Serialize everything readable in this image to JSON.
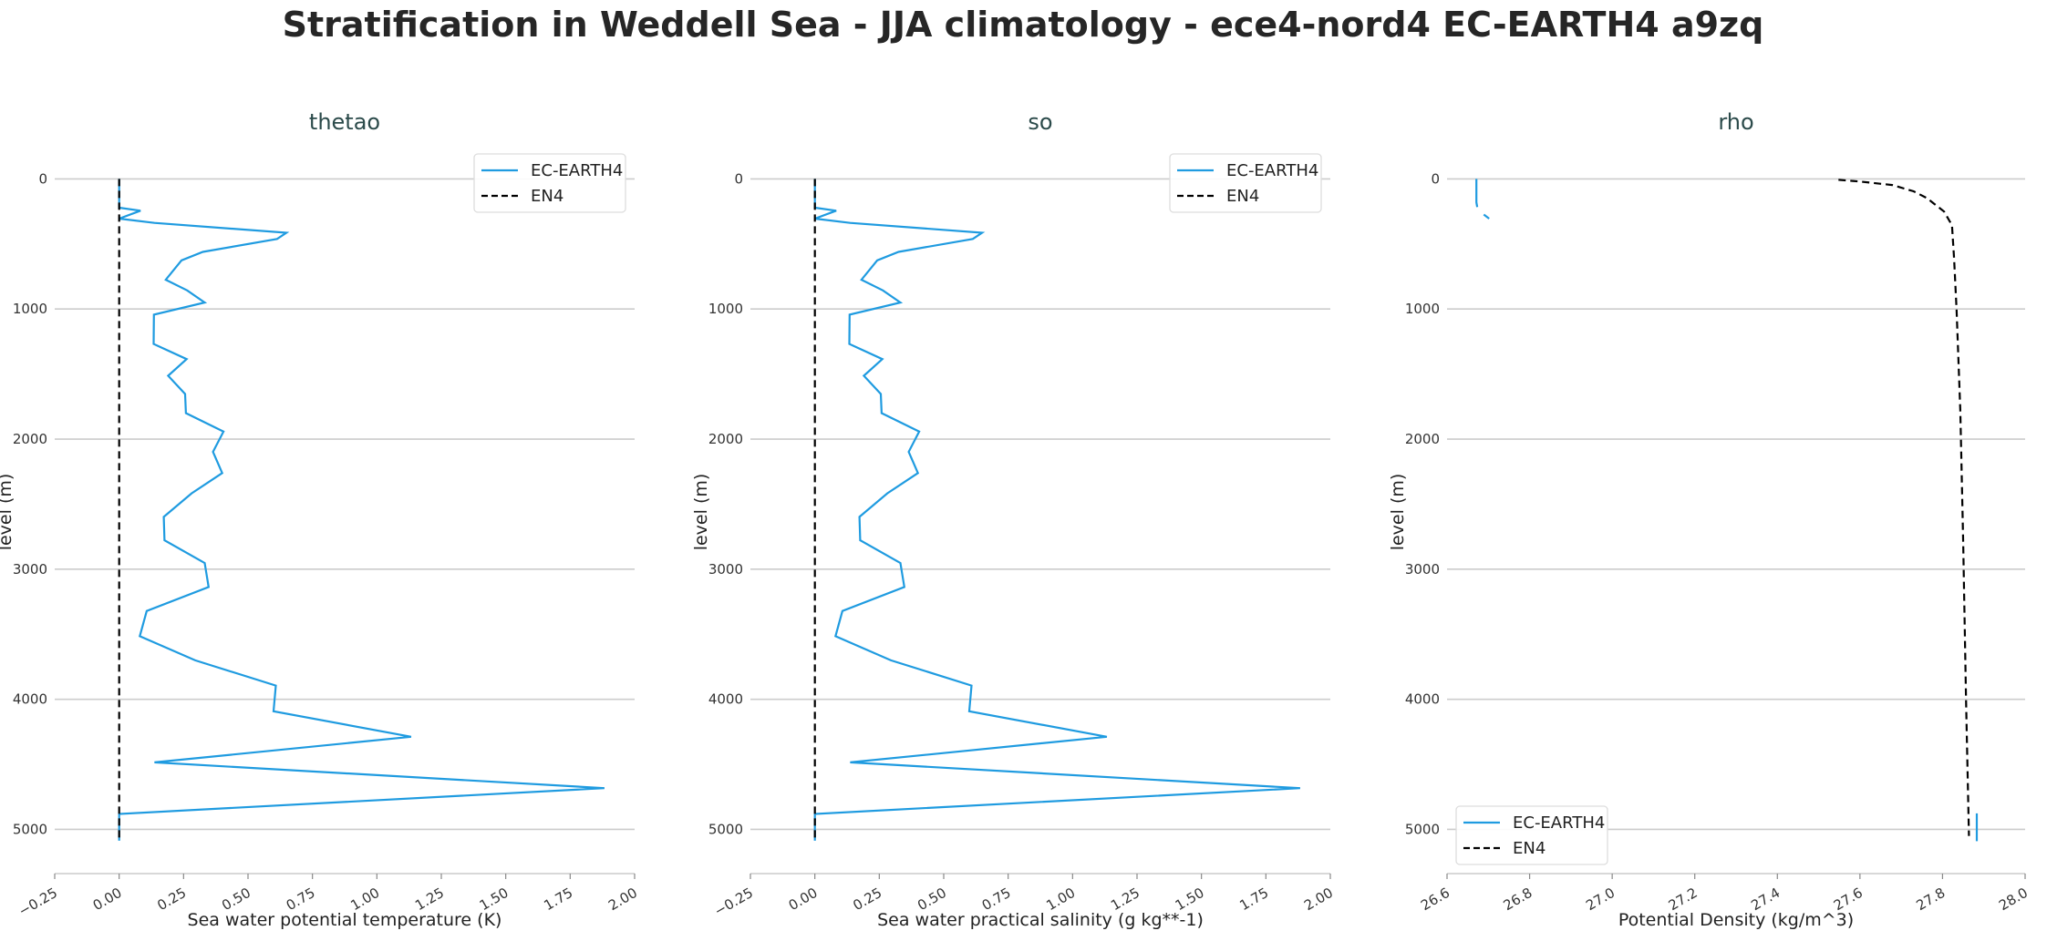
{
  "title": "Stratification in Weddell Sea - JJA climatology - ece4-nord4 EC-EARTH4 a9zq",
  "colors": {
    "EC-EARTH4": "#1f9be0",
    "EN4": "#000000",
    "grid": "#cccccc"
  },
  "chart_data": [
    {
      "type": "line",
      "title": "thetao",
      "xlabel": "Sea water potential temperature (K)",
      "ylabel": "level (m)",
      "xlim": [
        -0.25,
        2.0
      ],
      "ylim": [
        5340,
        -220
      ],
      "y_inverted": true,
      "grid": "horizontal",
      "xticks": [
        "-0.25",
        "0.00",
        "0.25",
        "0.50",
        "0.75",
        "1.00",
        "1.25",
        "1.50",
        "1.75",
        "2.00"
      ],
      "yticks": [
        "0",
        "1000",
        "2000",
        "3000",
        "4000",
        "5000"
      ],
      "legend": "top-right",
      "series": [
        {
          "name": "EC-EARTH4",
          "style": "solid",
          "x": [
            0,
            0,
            0.083,
            0,
            0.137,
            0.649,
            0.613,
            0.325,
            0.242,
            0.181,
            0.264,
            0.332,
            0.135,
            0.134,
            0.262,
            0.19,
            0.256,
            0.259,
            0.405,
            0.364,
            0.4,
            0.281,
            0.173,
            0.176,
            0.332,
            0.347,
            0.107,
            0.08,
            0.295,
            0.608,
            0.599,
            1.133,
            0.137,
            1.883,
            0,
            0
          ],
          "y": [
            0,
            221,
            244,
            305,
            338,
            414,
            461,
            561,
            626,
            775,
            857,
            950,
            1043,
            1269,
            1385,
            1513,
            1653,
            1800,
            1942,
            2098,
            2261,
            2417,
            2598,
            2778,
            2953,
            3137,
            3321,
            3515,
            3701,
            3895,
            4092,
            4288,
            4485,
            4683,
            4881,
            5087
          ]
        },
        {
          "name": "EN4",
          "style": "dashed",
          "x": [
            0,
            0
          ],
          "y": [
            0,
            5087
          ]
        }
      ]
    },
    {
      "type": "line",
      "title": "so",
      "xlabel": "Sea water practical salinity (g kg**-1)",
      "ylabel": "level (m)",
      "xlim": [
        -0.25,
        2.0
      ],
      "ylim": [
        5340,
        -220
      ],
      "y_inverted": true,
      "grid": "horizontal",
      "xticks": [
        "-0.25",
        "0.00",
        "0.25",
        "0.50",
        "0.75",
        "1.00",
        "1.25",
        "1.50",
        "1.75",
        "2.00"
      ],
      "yticks": [
        "0",
        "1000",
        "2000",
        "3000",
        "4000",
        "5000"
      ],
      "legend": "top-right",
      "series": [
        {
          "name": "EC-EARTH4",
          "style": "solid",
          "x": [
            0,
            0,
            0.083,
            0,
            0.137,
            0.649,
            0.613,
            0.325,
            0.242,
            0.181,
            0.264,
            0.332,
            0.135,
            0.134,
            0.262,
            0.19,
            0.256,
            0.259,
            0.405,
            0.364,
            0.4,
            0.281,
            0.173,
            0.176,
            0.332,
            0.347,
            0.107,
            0.08,
            0.295,
            0.608,
            0.599,
            1.133,
            0.137,
            1.883,
            0,
            0
          ],
          "y": [
            0,
            221,
            244,
            305,
            338,
            414,
            461,
            561,
            626,
            775,
            857,
            950,
            1043,
            1269,
            1385,
            1513,
            1653,
            1800,
            1942,
            2098,
            2261,
            2417,
            2598,
            2778,
            2953,
            3137,
            3321,
            3515,
            3701,
            3895,
            4092,
            4288,
            4485,
            4683,
            4881,
            5087
          ]
        },
        {
          "name": "EN4",
          "style": "dashed",
          "x": [
            0,
            0
          ],
          "y": [
            0,
            5087
          ]
        }
      ]
    },
    {
      "type": "line",
      "title": "rho",
      "xlabel": "Potential Density (kg/m^3)",
      "ylabel": "level (m)",
      "xlim": [
        26.6,
        28.0
      ],
      "ylim": [
        5340,
        -220
      ],
      "y_inverted": true,
      "grid": "horizontal",
      "xticks": [
        "26.6",
        "26.8",
        "27.0",
        "27.2",
        "27.4",
        "27.6",
        "27.8",
        "28.0"
      ],
      "yticks": [
        "0",
        "1000",
        "2000",
        "3000",
        "4000",
        "5000"
      ],
      "legend": "bottom-left",
      "series": [
        {
          "name": "EC-EARTH4",
          "style": "solid",
          "segments": [
            {
              "x": [
                26.671,
                26.671,
                26.673
              ],
              "y": [
                0,
                180,
                216
              ]
            },
            {
              "x": [
                26.689,
                26.702
              ],
              "y": [
                274,
                305
              ]
            },
            {
              "x": [
                27.883,
                27.883
              ],
              "y": [
                4877,
                5091
              ]
            }
          ]
        },
        {
          "name": "EN4",
          "style": "dashed",
          "x": [
            27.548,
            27.6,
            27.678,
            27.73,
            27.762,
            27.804,
            27.823,
            27.828,
            27.834,
            27.843,
            27.85,
            27.857,
            27.864
          ],
          "y": [
            7,
            20,
            47,
            95,
            147,
            251,
            356,
            612,
            1000,
            1776,
            2800,
            4000,
            5051
          ]
        }
      ]
    }
  ]
}
